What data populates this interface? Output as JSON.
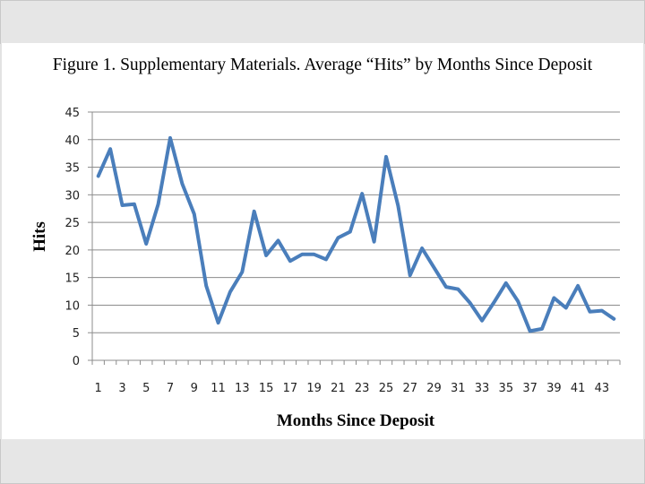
{
  "chart_data": {
    "type": "line",
    "title": "Figure 1. Supplementary Materials. Average “Hits” by Months Since Deposit",
    "xlabel": "Months Since Deposit",
    "ylabel": "Hits",
    "ylim": [
      0,
      45
    ],
    "yticks": [
      0,
      5,
      10,
      15,
      20,
      25,
      30,
      35,
      40,
      45
    ],
    "xtick_labels": [
      "1",
      "3",
      "5",
      "7",
      "9",
      "11",
      "13",
      "15",
      "17",
      "19",
      "21",
      "23",
      "25",
      "27",
      "29",
      "31",
      "33",
      "35",
      "37",
      "39",
      "41",
      "43"
    ],
    "grid": true,
    "legend": "none",
    "series_color": "#4a7ebb",
    "series": [
      {
        "name": "Average Hits",
        "x": [
          1,
          2,
          3,
          4,
          5,
          6,
          7,
          8,
          9,
          10,
          11,
          12,
          13,
          14,
          15,
          16,
          17,
          18,
          19,
          20,
          21,
          22,
          23,
          24,
          25,
          26,
          27,
          28,
          29,
          30,
          31,
          32,
          33,
          34,
          35,
          36,
          37,
          38,
          39,
          40,
          41,
          42,
          43,
          44
        ],
        "values": [
          33.4,
          38.3,
          28.1,
          28.3,
          21.1,
          28.3,
          40.3,
          32.0,
          26.5,
          13.5,
          6.8,
          12.4,
          16.0,
          27.0,
          19.0,
          21.7,
          18.0,
          19.2,
          19.2,
          18.3,
          22.2,
          23.3,
          30.2,
          21.5,
          36.9,
          28.0,
          15.4,
          20.3,
          16.8,
          13.3,
          12.9,
          10.4,
          7.2,
          10.5,
          14.0,
          10.7,
          5.3,
          5.7,
          11.3,
          9.5,
          13.5,
          8.8,
          9.0,
          7.5
        ]
      }
    ]
  }
}
